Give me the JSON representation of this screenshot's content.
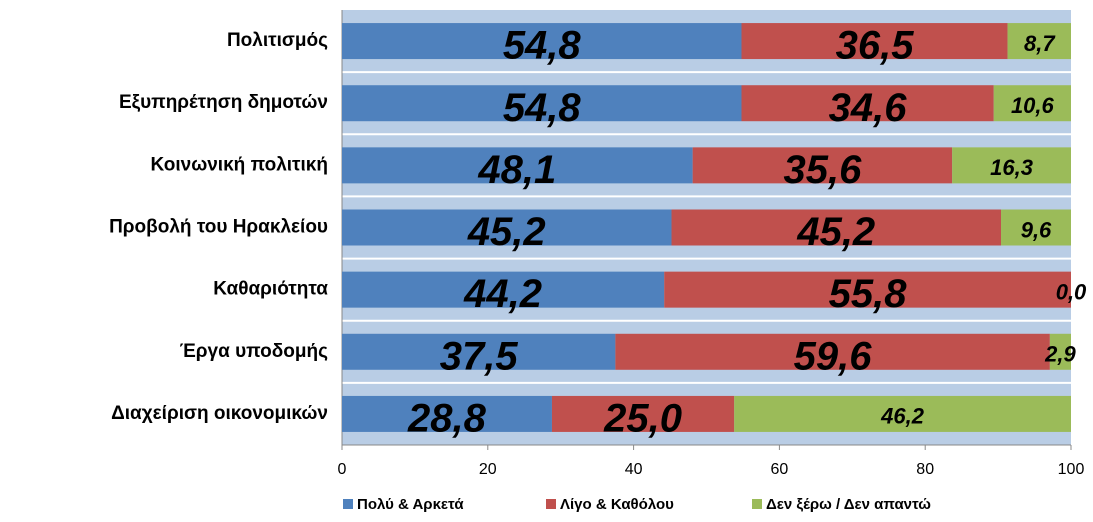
{
  "chart_data": {
    "type": "stacked_barh",
    "categories": [
      "Πολιτισμός",
      "Εξυπηρέτηση δημοτών",
      "Κοινωνική πολιτική",
      "Προβολή του Ηρακλείου",
      "Καθαριότητα",
      "Έργα υποδομής",
      "Διαχείριση οικονομικών"
    ],
    "series": [
      {
        "name": "Πολύ & Αρκετά",
        "color": "#4f81bd",
        "values": [
          54.8,
          54.8,
          48.1,
          45.2,
          44.2,
          37.5,
          28.8
        ],
        "value_labels": [
          "54,8",
          "54,8",
          "48,1",
          "45,2",
          "44,2",
          "37,5",
          "28,8"
        ]
      },
      {
        "name": "Λίγο & Καθόλου",
        "color": "#c0504d",
        "values": [
          36.5,
          34.6,
          35.6,
          45.2,
          55.8,
          59.6,
          25.0
        ],
        "value_labels": [
          "36,5",
          "34,6",
          "35,6",
          "45,2",
          "55,8",
          "59,6",
          "25,0"
        ]
      },
      {
        "name": "Δεν ξέρω / Δεν απαντώ",
        "color": "#9bbb59",
        "values": [
          8.7,
          10.6,
          16.3,
          9.6,
          0.0,
          2.9,
          46.2
        ],
        "value_labels": [
          "8,7",
          "10,6",
          "16,3",
          "9,6",
          "0,0",
          "2,9",
          "46,2"
        ]
      }
    ],
    "xlim": [
      0,
      100
    ],
    "xticks": [
      0,
      20,
      40,
      60,
      80,
      100
    ],
    "legend": "bottom"
  }
}
